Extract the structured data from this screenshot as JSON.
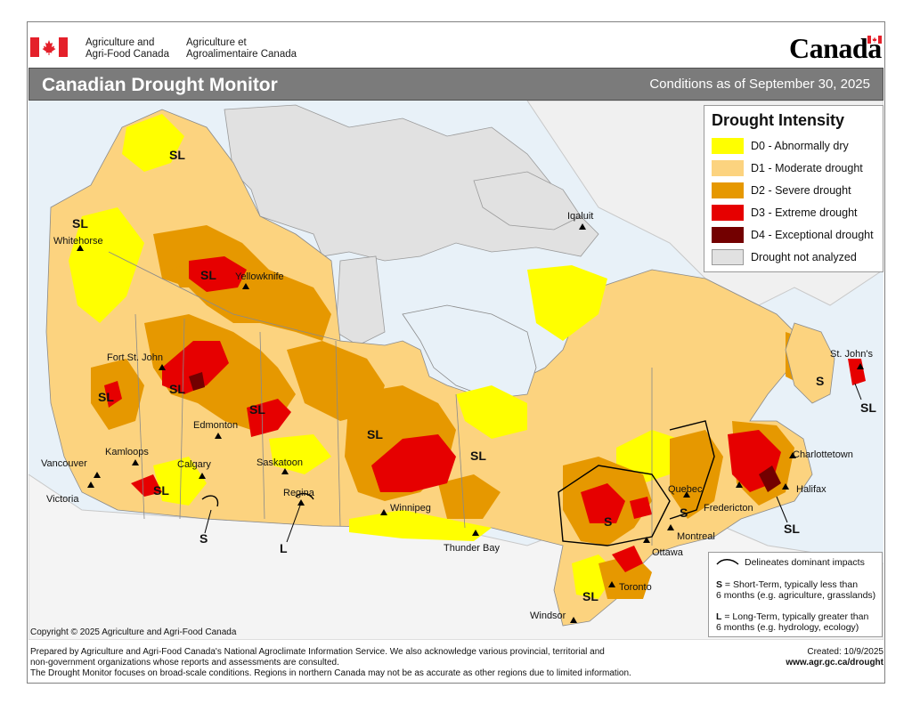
{
  "header": {
    "dept_en": [
      "Agriculture and",
      "Agri-Food Canada"
    ],
    "dept_fr": [
      "Agriculture et",
      "Agroalimentaire Canada"
    ],
    "wordmark": "Canada"
  },
  "titlebar": {
    "title": "Canadian Drought Monitor",
    "conditions": "Conditions as of September 30, 2025"
  },
  "legend": {
    "title": "Drought Intensity",
    "items": [
      {
        "label": "D0 - Abnormally dry",
        "color": "#ffff00"
      },
      {
        "label": "D1 - Moderate drought",
        "color": "#fcd37f"
      },
      {
        "label": "D2 - Severe drought",
        "color": "#e69800"
      },
      {
        "label": "D3 - Extreme drought",
        "color": "#e60000"
      },
      {
        "label": "D4 - Exceptional drought",
        "color": "#730000"
      },
      {
        "label": "Drought not analyzed",
        "color": "#e1e1e1"
      }
    ]
  },
  "impacts": {
    "delineates": "Delineates dominant impacts",
    "s_code": "S",
    "s_text1": " = Short-Term, typically less than",
    "s_text2": "6 months (e.g. agriculture, grasslands)",
    "l_code": "L",
    "l_text1": " = Long-Term, typically greater  than",
    "l_text2": "6 months (e.g. hydrology, ecology)"
  },
  "cities": {
    "whitehorse": "Whitehorse",
    "yellowknife": "Yellowknife",
    "iqaluit": "Iqaluit",
    "fort_st_john": "Fort St. John",
    "edmonton": "Edmonton",
    "calgary": "Calgary",
    "kamloops": "Kamloops",
    "vancouver": "Vancouver",
    "victoria": "Victoria",
    "saskatoon": "Saskatoon",
    "regina": "Regina",
    "winnipeg": "Winnipeg",
    "thunder_bay": "Thunder Bay",
    "toronto": "Toronto",
    "windsor": "Windsor",
    "ottawa": "Ottawa",
    "montreal": "Montreal",
    "quebec": "Quebec",
    "fredericton": "Fredericton",
    "halifax": "Halifax",
    "charlottetown": "Charlottetown",
    "st_johns": "St. John's"
  },
  "impact_codes": {
    "sl": "SL",
    "s": "S",
    "l": "L"
  },
  "footer": {
    "copyright": "Copyright © 2025 Agriculture and Agri-Food Canada",
    "line1": "Prepared by Agriculture and Agri-Food Canada's National Agroclimate Information Service.  We also acknowledge various provincial, territorial and",
    "line2": "non-government organizations whose reports and assessments are consulted.",
    "line3": "The Drought Monitor focuses on broad-scale conditions.  Regions in northern Canada may not be as accurate as other regions due to limited information.",
    "created": "Created: 10/9/2025",
    "url": "www.agr.gc.ca/drought"
  }
}
